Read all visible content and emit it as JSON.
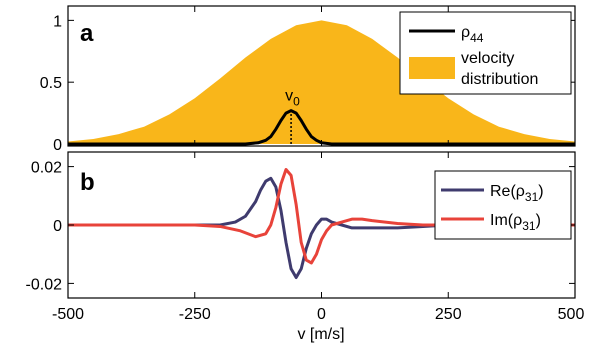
{
  "chart_data": [
    {
      "panel": "a",
      "type": "area",
      "xlim": [
        -500,
        500
      ],
      "ylim": [
        0,
        1.1
      ],
      "yticks": [
        0,
        0.5,
        1
      ],
      "ytick_labels": [
        "0",
        "0.5",
        "1"
      ],
      "series": [
        {
          "name": "velocity distribution",
          "kind": "area",
          "color": "#F9B61A",
          "x": [
            -500,
            -450,
            -400,
            -350,
            -300,
            -250,
            -200,
            -150,
            -100,
            -50,
            0,
            50,
            100,
            150,
            200,
            250,
            300,
            350,
            400,
            450,
            500
          ],
          "y": [
            0.02,
            0.04,
            0.08,
            0.14,
            0.24,
            0.37,
            0.53,
            0.7,
            0.85,
            0.96,
            1.0,
            0.96,
            0.85,
            0.7,
            0.53,
            0.37,
            0.24,
            0.14,
            0.08,
            0.04,
            0.02
          ]
        },
        {
          "name": "ρ44",
          "kind": "line",
          "color": "#000000",
          "x": [
            -500,
            -150,
            -125,
            -110,
            -100,
            -90,
            -80,
            -70,
            -60,
            -50,
            -40,
            -30,
            -20,
            -10,
            0,
            20,
            500
          ],
          "y": [
            0,
            0,
            0.01,
            0.03,
            0.06,
            0.12,
            0.19,
            0.25,
            0.27,
            0.25,
            0.19,
            0.12,
            0.06,
            0.03,
            0.01,
            0,
            0
          ]
        }
      ],
      "annotation": {
        "label": "v",
        "subscript": "0",
        "x": -60
      },
      "legend": [
        {
          "label": "ρ",
          "subscript": "44"
        },
        {
          "label": "velocity\ndistribution"
        }
      ]
    },
    {
      "panel": "b",
      "type": "line",
      "xlim": [
        -500,
        500
      ],
      "ylim": [
        -0.025,
        0.025
      ],
      "yticks": [
        -0.02,
        0,
        0.02
      ],
      "ytick_labels": [
        "-0.02",
        "0",
        "0.02"
      ],
      "xticks": [
        -500,
        -250,
        0,
        250,
        500
      ],
      "xtick_labels": [
        "-500",
        "-250",
        "0",
        "250",
        "500"
      ],
      "xlabel": "v [m/s]",
      "series": [
        {
          "name": "Re(ρ31)",
          "color": "#3F3B6E",
          "x": [
            -500,
            -250,
            -200,
            -170,
            -150,
            -130,
            -120,
            -110,
            -100,
            -90,
            -80,
            -70,
            -60,
            -50,
            -40,
            -30,
            -20,
            -10,
            0,
            10,
            20,
            40,
            60,
            80,
            100,
            150,
            200,
            250,
            500
          ],
          "y": [
            0,
            0,
            0,
            0.001,
            0.003,
            0.008,
            0.012,
            0.015,
            0.016,
            0.013,
            0.005,
            -0.006,
            -0.015,
            -0.018,
            -0.015,
            -0.008,
            -0.003,
            0,
            0.002,
            0.002,
            0.001,
            0,
            -0.001,
            -0.001,
            -0.001,
            -0.001,
            -0.0005,
            0,
            0
          ]
        },
        {
          "name": "Im(ρ31)",
          "color": "#E8433A",
          "x": [
            -500,
            -250,
            -200,
            -160,
            -130,
            -110,
            -100,
            -90,
            -80,
            -70,
            -60,
            -50,
            -40,
            -30,
            -20,
            -10,
            0,
            10,
            20,
            40,
            60,
            80,
            100,
            150,
            200,
            250,
            500
          ],
          "y": [
            0,
            0,
            -0.0005,
            -0.002,
            -0.004,
            -0.003,
            0,
            0.006,
            0.014,
            0.019,
            0.017,
            0.007,
            -0.006,
            -0.012,
            -0.013,
            -0.01,
            -0.005,
            -0.002,
            0,
            0.001,
            0.002,
            0.002,
            0.0015,
            0.0005,
            0,
            0,
            0
          ]
        }
      ],
      "legend": [
        {
          "label": "Re(ρ",
          "subscript": "31",
          "suffix": ")"
        },
        {
          "label": "Im(ρ",
          "subscript": "31",
          "suffix": ")"
        }
      ]
    }
  ],
  "panels": {
    "a_letter": "a",
    "b_letter": "b"
  }
}
